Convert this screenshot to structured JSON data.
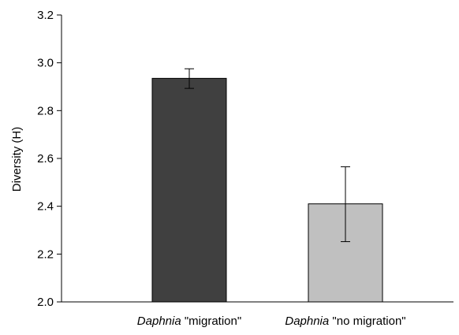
{
  "chart_data": {
    "type": "bar",
    "title": "",
    "xlabel": "",
    "ylabel": "Diversity (H)",
    "ylim": [
      2.0,
      3.2
    ],
    "yticks": [
      2.0,
      2.2,
      2.4,
      2.6,
      2.8,
      3.0,
      3.2
    ],
    "ytick_labels": [
      "2.0",
      "2.2",
      "2.4",
      "2.6",
      "2.8",
      "3.0",
      "3.2"
    ],
    "grid": false,
    "categories": [
      {
        "italic": "Daphnia",
        "rest": "\"migration\""
      },
      {
        "italic": "Daphnia",
        "rest": "\"no migration\""
      }
    ],
    "values": [
      2.935,
      2.41
    ],
    "error_low": [
      2.893,
      2.252
    ],
    "error_high": [
      2.975,
      2.565
    ],
    "colors": [
      "#404040",
      "#c0c0c0"
    ]
  }
}
